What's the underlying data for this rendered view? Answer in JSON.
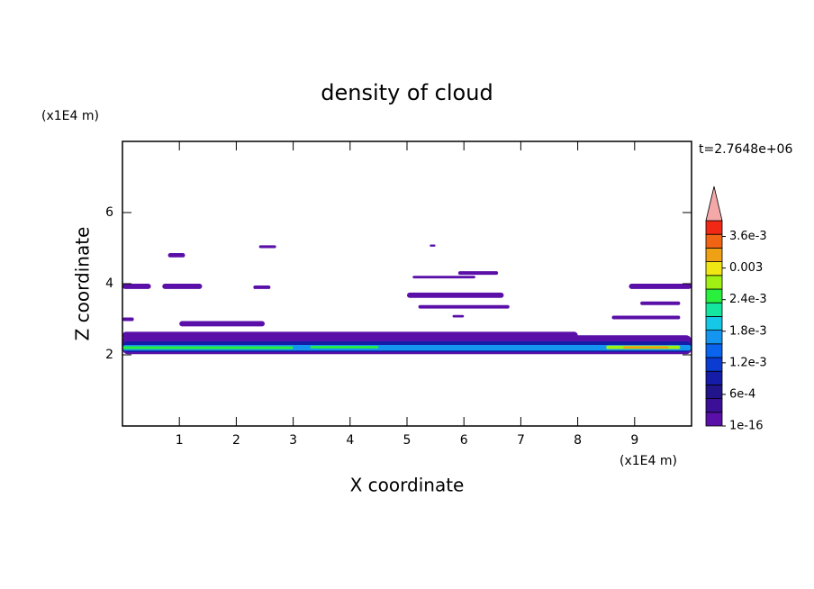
{
  "chart_data": {
    "type": "contour",
    "title": "density of cloud",
    "x_label": "X coordinate",
    "y_label": "Z coordinate",
    "x_unit": "(x1E4 m)",
    "y_unit": "(x1E4 m)",
    "time_label": "t=2.7648e+06",
    "xlim": [
      0,
      10
    ],
    "ylim": [
      0,
      8
    ],
    "xticks": [
      1,
      2,
      3,
      4,
      5,
      6,
      7,
      8,
      9
    ],
    "yticks": [
      2,
      4,
      6
    ],
    "clim": [
      0,
      0.0039
    ],
    "cticks": [
      1e-16,
      {
        "value": 0.0006,
        "label": "6e-4"
      },
      {
        "value": 0.0012,
        "label": "1.2e-3"
      },
      {
        "value": 0.0018,
        "label": "1.8e-3"
      },
      {
        "value": 0.0024,
        "label": "2.4e-3"
      },
      0.003,
      {
        "value": 0.0036,
        "label": "3.6e-3"
      }
    ],
    "colors": [
      "#5a10a8",
      "#3c1096",
      "#22148a",
      "#141ca8",
      "#0a3cd2",
      "#0a64ee",
      "#1496f0",
      "#14c8e6",
      "#14e6a0",
      "#28f03c",
      "#a0f014",
      "#f0e614",
      "#f0a014",
      "#f06414",
      "#f02814"
    ],
    "over_color": "#f4a8a8",
    "patches": [
      {
        "x": [
          0,
          10
        ],
        "z": [
          2.02,
          2.55
        ],
        "value": 1e-16
      },
      {
        "x": [
          0,
          8
        ],
        "z": [
          2.45,
          2.65
        ],
        "value": 1e-16
      },
      {
        "x": [
          0,
          10
        ],
        "z": [
          2.08,
          2.38
        ],
        "value": 0.0009
      },
      {
        "x": [
          0,
          10
        ],
        "z": [
          2.12,
          2.28
        ],
        "value": 0.0018
      },
      {
        "x": [
          0,
          3
        ],
        "z": [
          2.16,
          2.24
        ],
        "value": 0.0024
      },
      {
        "x": [
          3.3,
          4.5
        ],
        "z": [
          2.18,
          2.25
        ],
        "value": 0.0024
      },
      {
        "x": [
          8.5,
          9.8
        ],
        "z": [
          2.16,
          2.26
        ],
        "value": 0.0027
      },
      {
        "x": [
          8.8,
          9.6
        ],
        "z": [
          2.18,
          2.24
        ],
        "value": 0.0033
      },
      {
        "x": [
          0.8,
          1.1
        ],
        "z": [
          4.74,
          4.86
        ],
        "value": 1e-16
      },
      {
        "x": [
          0,
          0.5
        ],
        "z": [
          3.85,
          4.0
        ],
        "value": 1e-16
      },
      {
        "x": [
          0.7,
          1.4
        ],
        "z": [
          3.85,
          4.0
        ],
        "value": 1e-16
      },
      {
        "x": [
          2.3,
          2.6
        ],
        "z": [
          3.85,
          3.95
        ],
        "value": 1e-16
      },
      {
        "x": [
          1.0,
          2.5
        ],
        "z": [
          2.8,
          2.95
        ],
        "value": 1e-16
      },
      {
        "x": [
          0,
          0.2
        ],
        "z": [
          2.95,
          3.05
        ],
        "value": 1e-16
      },
      {
        "x": [
          2.4,
          2.7
        ],
        "z": [
          5.0,
          5.08
        ],
        "value": 1e-16
      },
      {
        "x": [
          5.4,
          5.5
        ],
        "z": [
          5.04,
          5.1
        ],
        "value": 1e-16
      },
      {
        "x": [
          5.1,
          6.2
        ],
        "z": [
          4.15,
          4.22
        ],
        "value": 1e-16
      },
      {
        "x": [
          5.9,
          6.6
        ],
        "z": [
          4.25,
          4.35
        ],
        "value": 1e-16
      },
      {
        "x": [
          5.0,
          6.7
        ],
        "z": [
          3.6,
          3.75
        ],
        "value": 1e-16
      },
      {
        "x": [
          5.2,
          6.8
        ],
        "z": [
          3.3,
          3.4
        ],
        "value": 1e-16
      },
      {
        "x": [
          5.8,
          6.0
        ],
        "z": [
          3.05,
          3.12
        ],
        "value": 1e-16
      },
      {
        "x": [
          8.9,
          10
        ],
        "z": [
          3.85,
          4.0
        ],
        "value": 1e-16
      },
      {
        "x": [
          9.1,
          9.8
        ],
        "z": [
          3.4,
          3.5
        ],
        "value": 1e-16
      },
      {
        "x": [
          8.6,
          9.8
        ],
        "z": [
          3.0,
          3.1
        ],
        "value": 1e-16
      }
    ]
  }
}
